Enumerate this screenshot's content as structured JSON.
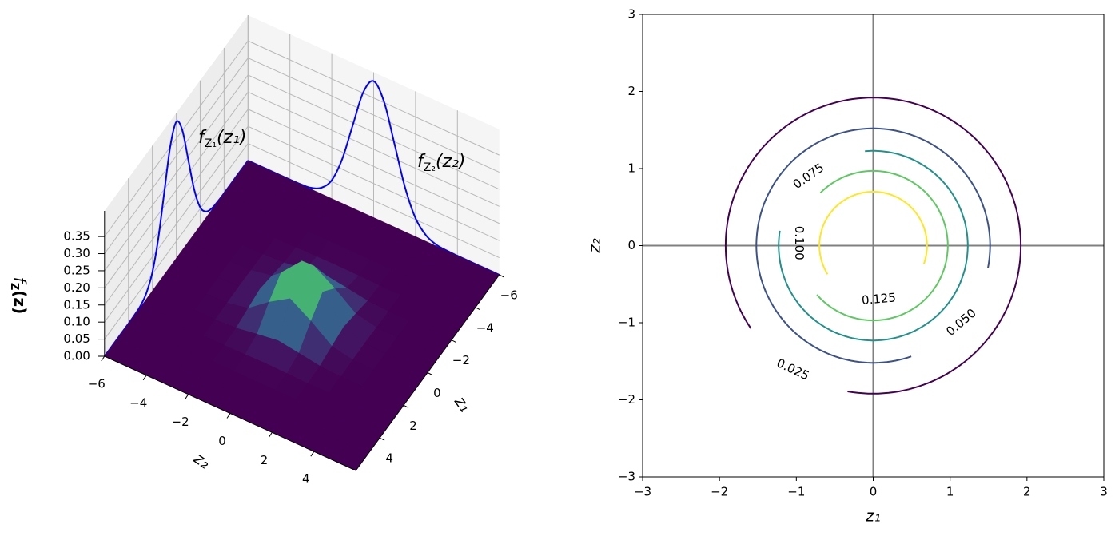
{
  "chart_data": [
    {
      "type": "surface3d",
      "x": [
        -6,
        -5,
        -4,
        -3,
        -2,
        -1,
        0,
        1,
        2,
        3,
        4,
        5,
        6
      ],
      "y": [
        -6,
        -5,
        -4,
        -3,
        -2,
        -1,
        0,
        1,
        2,
        3,
        4,
        5,
        6
      ],
      "z": [
        [
          0,
          0,
          0,
          0,
          0,
          0,
          0,
          0,
          0,
          0,
          0,
          0,
          0
        ],
        [
          0,
          0,
          0,
          0,
          0,
          0,
          0,
          0,
          0,
          0,
          0,
          0,
          0
        ],
        [
          0,
          0,
          0,
          0,
          0,
          0,
          0,
          0,
          0,
          0,
          0,
          0,
          0
        ],
        [
          0,
          0,
          0,
          0,
          0,
          0.001,
          0.002,
          0.001,
          0,
          0,
          0,
          0,
          0
        ],
        [
          0,
          0,
          0,
          0,
          0.003,
          0.013,
          0.022,
          0.013,
          0.003,
          0,
          0,
          0,
          0
        ],
        [
          0,
          0,
          0,
          0.001,
          0.013,
          0.059,
          0.097,
          0.059,
          0.013,
          0.001,
          0,
          0,
          0
        ],
        [
          0,
          0,
          0,
          0.002,
          0.022,
          0.097,
          0.159,
          0.097,
          0.022,
          0.002,
          0,
          0,
          0
        ],
        [
          0,
          0,
          0,
          0.001,
          0.013,
          0.059,
          0.097,
          0.059,
          0.013,
          0.001,
          0,
          0,
          0
        ],
        [
          0,
          0,
          0,
          0,
          0.003,
          0.013,
          0.022,
          0.013,
          0.003,
          0,
          0,
          0,
          0
        ],
        [
          0,
          0,
          0,
          0,
          0,
          0.001,
          0.002,
          0.001,
          0,
          0,
          0,
          0,
          0
        ],
        [
          0,
          0,
          0,
          0,
          0,
          0,
          0,
          0,
          0,
          0,
          0,
          0,
          0
        ],
        [
          0,
          0,
          0,
          0,
          0,
          0,
          0,
          0,
          0,
          0,
          0,
          0,
          0
        ],
        [
          0,
          0,
          0,
          0,
          0,
          0,
          0,
          0,
          0,
          0,
          0,
          0,
          0
        ]
      ],
      "colormap": "viridis",
      "xlabel": "z₁",
      "ylabel": "z₂",
      "zlabel": [
        "f",
        "Z",
        "(z)"
      ],
      "xlim": [
        -6,
        6
      ],
      "ylim": [
        -6,
        6
      ],
      "zlim": [
        0,
        0.425
      ],
      "xticks": [
        {
          "value": -6,
          "label": "−6"
        },
        {
          "value": -4,
          "label": "−4"
        },
        {
          "value": -2,
          "label": "−2"
        },
        0,
        2,
        4
      ],
      "yticks": [
        {
          "value": -6,
          "label": "−6"
        },
        {
          "value": -4,
          "label": "−4"
        },
        {
          "value": -2,
          "label": "−2"
        },
        0,
        2,
        4
      ],
      "zticks": [
        {
          "value": 0,
          "label": "0.00"
        },
        0.05,
        {
          "value": 0.1,
          "label": "0.10"
        },
        0.15,
        {
          "value": 0.2,
          "label": "0.20"
        },
        0.25,
        {
          "value": 0.3,
          "label": "0.30"
        },
        0.35
      ],
      "grid": true,
      "marginals": [
        {
          "label": [
            "f",
            "Z₁",
            "(z₁)"
          ],
          "axis": "x",
          "color": "#0000ff",
          "x": [
            -6,
            -5.5,
            -5,
            -4.5,
            -4,
            -3.5,
            -3,
            -2.5,
            -2,
            -1.5,
            -1,
            -0.5,
            0,
            0.5,
            1,
            1.5,
            2,
            2.5,
            3,
            3.5,
            4,
            4.5,
            5,
            5.5,
            6
          ],
          "values": [
            0,
            0,
            0,
            0,
            0,
            0.001,
            0.004,
            0.018,
            0.054,
            0.13,
            0.242,
            0.352,
            0.399,
            0.352,
            0.242,
            0.13,
            0.054,
            0.018,
            0.004,
            0.001,
            0,
            0,
            0,
            0,
            0
          ]
        },
        {
          "label": [
            "f",
            "Z₂",
            "(z₂)"
          ],
          "axis": "y",
          "color": "#0000ff",
          "x": [
            -6,
            -5.5,
            -5,
            -4.5,
            -4,
            -3.5,
            -3,
            -2.5,
            -2,
            -1.5,
            -1,
            -0.5,
            0,
            0.5,
            1,
            1.5,
            2,
            2.5,
            3,
            3.5,
            4,
            4.5,
            5,
            5.5,
            6
          ],
          "values": [
            0,
            0,
            0,
            0,
            0,
            0.001,
            0.004,
            0.018,
            0.054,
            0.13,
            0.242,
            0.352,
            0.399,
            0.352,
            0.242,
            0.13,
            0.054,
            0.018,
            0.004,
            0.001,
            0,
            0,
            0,
            0,
            0
          ]
        }
      ]
    },
    {
      "type": "contour",
      "xlabel": "z₁",
      "ylabel": "z₂",
      "xlim": [
        -3,
        3
      ],
      "ylim": [
        -3,
        3
      ],
      "xticks": [
        {
          "value": -3,
          "label": "−3"
        },
        {
          "value": -2,
          "label": "−2"
        },
        {
          "value": -1,
          "label": "−1"
        },
        0,
        1,
        2,
        3
      ],
      "yticks": [
        {
          "value": -3,
          "label": "−3"
        },
        {
          "value": -2,
          "label": "−2"
        },
        {
          "value": -1,
          "label": "−1"
        },
        0,
        1,
        2,
        3
      ],
      "levels": [
        0.025,
        0.05,
        0.075,
        0.1,
        0.125
      ],
      "value_labels": [
        "0.025",
        "0.050",
        "0.075",
        "0.100",
        "0.125"
      ],
      "radii": [
        1.92,
        1.52,
        1.23,
        0.97,
        0.7
      ],
      "colors": [
        "#440154",
        "#3b528b",
        "#21918c",
        "#5ec962",
        "#fde725"
      ],
      "reference_lines": {
        "x": 0,
        "y": 0,
        "color": "#808080"
      }
    }
  ]
}
